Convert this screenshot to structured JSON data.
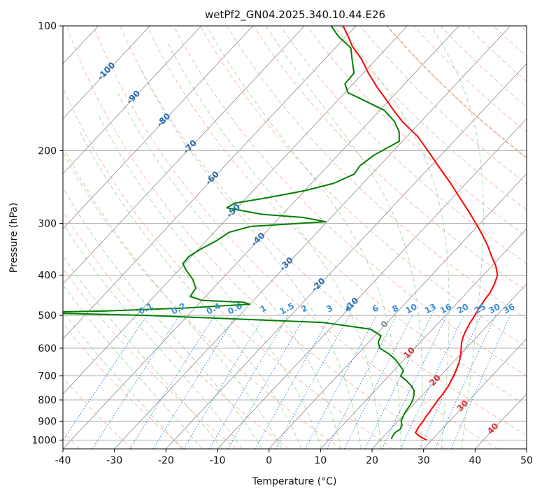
{
  "chart_data": {
    "type": "skew-t",
    "title": "wetPf2_GN04.2025.340.10.44.E26",
    "xlabel": "Temperature (°C)",
    "ylabel": "Pressure (hPa)",
    "xlim": [
      -40,
      50
    ],
    "ylim": [
      1050,
      100
    ],
    "y_scale": "log",
    "x_ticks": [
      -40,
      -30,
      -20,
      -10,
      0,
      10,
      20,
      30,
      40,
      50
    ],
    "y_ticks": [
      100,
      200,
      300,
      400,
      500,
      600,
      700,
      800,
      900,
      1000
    ],
    "grid": true,
    "isotherm_labels": [
      "-100",
      "-90",
      "-80",
      "-70",
      "-60",
      "-50",
      "-40",
      "-30",
      "-20",
      "-10",
      "0",
      "10",
      "20",
      "30",
      "40"
    ],
    "mixing_ratio_labels": [
      "0.1",
      "0.2",
      "0.4",
      "0.6",
      "1",
      "1.5",
      "2",
      "3",
      "4",
      "6",
      "8",
      "10",
      "13",
      "16",
      "20",
      "25",
      "30",
      "36"
    ],
    "series": [
      {
        "id": "temperature",
        "color": "#ff0000",
        "points": [
          [
            1000,
            29.0
          ],
          [
            980,
            27.0
          ],
          [
            960,
            25.5
          ],
          [
            940,
            25.2
          ],
          [
            920,
            25.0
          ],
          [
            900,
            24.9
          ],
          [
            880,
            24.6
          ],
          [
            860,
            24.5
          ],
          [
            840,
            24.3
          ],
          [
            820,
            24.1
          ],
          [
            800,
            23.9
          ],
          [
            780,
            23.8
          ],
          [
            760,
            23.6
          ],
          [
            740,
            23.4
          ],
          [
            720,
            23.0
          ],
          [
            700,
            22.6
          ],
          [
            680,
            22.1
          ],
          [
            650,
            21.2
          ],
          [
            620,
            20.0
          ],
          [
            600,
            19.0
          ],
          [
            580,
            18.0
          ],
          [
            560,
            17.2
          ],
          [
            540,
            16.6
          ],
          [
            520,
            16.1
          ],
          [
            500,
            15.7
          ],
          [
            480,
            15.2
          ],
          [
            460,
            14.8
          ],
          [
            440,
            14.5
          ],
          [
            420,
            13.8
          ],
          [
            400,
            12.8
          ],
          [
            380,
            10.8
          ],
          [
            360,
            8.2
          ],
          [
            340,
            5.6
          ],
          [
            320,
            2.6
          ],
          [
            300,
            -0.8
          ],
          [
            280,
            -4.5
          ],
          [
            260,
            -8.6
          ],
          [
            240,
            -13.0
          ],
          [
            220,
            -18.0
          ],
          [
            200,
            -23.4
          ],
          [
            185,
            -27.9
          ],
          [
            170,
            -33.7
          ],
          [
            160,
            -37.3
          ],
          [
            150,
            -41.0
          ],
          [
            140,
            -45.0
          ],
          [
            130,
            -49.0
          ],
          [
            120,
            -53.0
          ],
          [
            112,
            -57.0
          ],
          [
            106,
            -59.6
          ],
          [
            100,
            -62.5
          ]
        ]
      },
      {
        "id": "dewpoint",
        "color": "#008000",
        "points": [
          [
            995,
            22.0
          ],
          [
            980,
            21.7
          ],
          [
            960,
            21.5
          ],
          [
            940,
            21.9
          ],
          [
            920,
            21.5
          ],
          [
            900,
            20.6
          ],
          [
            880,
            20.2
          ],
          [
            860,
            19.8
          ],
          [
            840,
            19.6
          ],
          [
            820,
            19.4
          ],
          [
            800,
            19.0
          ],
          [
            780,
            18.4
          ],
          [
            760,
            17.6
          ],
          [
            740,
            16.2
          ],
          [
            720,
            14.4
          ],
          [
            700,
            12.3
          ],
          [
            680,
            11.9
          ],
          [
            660,
            10.2
          ],
          [
            640,
            8.4
          ],
          [
            620,
            6.1
          ],
          [
            600,
            3.2
          ],
          [
            580,
            1.8
          ],
          [
            560,
            1.2
          ],
          [
            540,
            -2.0
          ],
          [
            520,
            -12.5
          ],
          [
            500,
            -48.0
          ],
          [
            492,
            -72.0
          ],
          [
            488,
            -57.0
          ],
          [
            480,
            -42.0
          ],
          [
            470,
            -30.0
          ],
          [
            465,
            -31.5
          ],
          [
            460,
            -40.0
          ],
          [
            450,
            -43.0
          ],
          [
            430,
            -43.4
          ],
          [
            410,
            -45.5
          ],
          [
            390,
            -48.4
          ],
          [
            375,
            -50.4
          ],
          [
            360,
            -50.5
          ],
          [
            345,
            -49.5
          ],
          [
            330,
            -48.0
          ],
          [
            315,
            -47.1
          ],
          [
            305,
            -44.0
          ],
          [
            297,
            -30.3
          ],
          [
            290,
            -35.5
          ],
          [
            285,
            -44.0
          ],
          [
            275,
            -52.0
          ],
          [
            268,
            -51.3
          ],
          [
            260,
            -46.0
          ],
          [
            250,
            -40.0
          ],
          [
            240,
            -35.7
          ],
          [
            228,
            -33.4
          ],
          [
            218,
            -33.8
          ],
          [
            205,
            -33.0
          ],
          [
            190,
            -30.6
          ],
          [
            180,
            -32.4
          ],
          [
            170,
            -35.2
          ],
          [
            160,
            -39.1
          ],
          [
            150,
            -45.8
          ],
          [
            145,
            -49.4
          ],
          [
            138,
            -51.6
          ],
          [
            130,
            -51.8
          ],
          [
            120,
            -54.8
          ],
          [
            113,
            -57.0
          ],
          [
            106,
            -61.5
          ],
          [
            100,
            -64.8
          ]
        ]
      }
    ]
  }
}
